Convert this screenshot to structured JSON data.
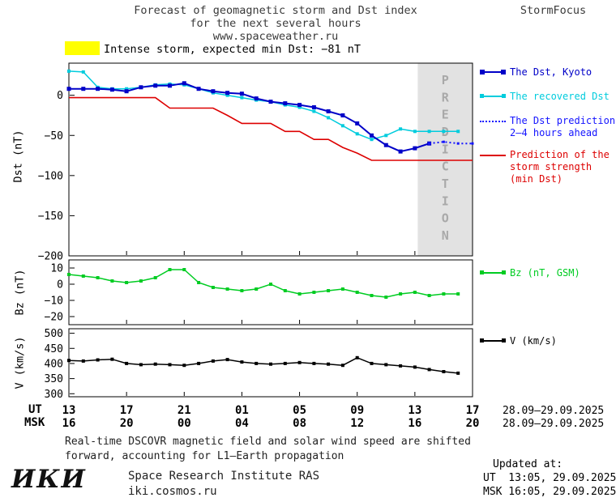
{
  "header": {
    "title_line1": "Forecast of geomagnetic storm and Dst index",
    "title_line2": "for the next several hours",
    "title_line3": "www.spaceweather.ru",
    "brand": "StormFocus"
  },
  "alert": {
    "text": "Intense storm, expected min Dst: −81 nT"
  },
  "axes": {
    "dst_label": "Dst (nT)",
    "bz_label": "Bz (nT)",
    "v_label": "V (km/s)"
  },
  "legend": {
    "dst_kyoto": "The Dst, Kyoto",
    "recovered": "The recovered Dst",
    "prediction_line1": "The Dst prediction",
    "prediction_line2": "2–4 hours ahead",
    "storm_line1": "Prediction of the",
    "storm_line2": "storm strength",
    "storm_line3": "(min Dst)",
    "bz": "Bz (nT, GSM)",
    "v": "V (km/s)"
  },
  "xaxis": {
    "ut_label": "UT",
    "msk_label": "MSK",
    "tick_positions": [
      0,
      4,
      8,
      12,
      16,
      20,
      24,
      28
    ],
    "ut_ticks": [
      "13",
      "17",
      "21",
      "01",
      "05",
      "09",
      "13",
      "17"
    ],
    "msk_ticks": [
      "16",
      "20",
      "00",
      "04",
      "08",
      "12",
      "16",
      "20"
    ],
    "ut_range": "28.09–29.09.2025",
    "msk_range": "28.09–29.09.2025"
  },
  "footer": {
    "note_line1": "Real-time DSCOVR magnetic field and solar wind speed are shifted",
    "note_line2": "forward, accounting for L1–Earth propagation",
    "updated_label": "Updated at:",
    "updated_ut": "UT  13:05, 29.09.2025",
    "updated_msk": "MSK 16:05, 29.09.2025",
    "logo": "ИКИ",
    "institute": "Space Research Institute RAS",
    "site": "iki.cosmos.ru"
  },
  "colors": {
    "yellow": "#ffff00",
    "dst_blue": "#0000c8",
    "recovered_cyan": "#00ccdd",
    "prediction_blue": "#1414ff",
    "storm_red": "#dd0000",
    "bz_green": "#00cc22",
    "band_gray": "#e2e2e2",
    "band_text": "#a9a9a9"
  },
  "chart_data": [
    {
      "type": "line",
      "name": "dst-chart",
      "title": "Dst index: observed, recovered and predicted",
      "ylabel": "Dst (nT)",
      "xlabel": "UT hours 28.09–29.09.2025",
      "xlim": [
        0,
        28
      ],
      "ylim": [
        -200,
        40
      ],
      "yticks": [
        0,
        -50,
        -100,
        -150,
        -200
      ],
      "x_tick_positions": [
        0,
        4,
        8,
        12,
        16,
        20,
        24,
        28
      ],
      "grid": false,
      "legend_position": "right",
      "prediction_band": {
        "x_start": 24.2,
        "x_end": 28,
        "label": "PREDICTION"
      },
      "series": [
        {
          "name": "Prediction of the storm strength (min Dst)",
          "color": "#dd0000",
          "style": "solid",
          "width": 1.6,
          "marker_size": 0,
          "x": [
            0,
            1,
            2,
            3,
            4,
            5,
            6,
            7,
            8,
            9,
            10,
            11,
            12,
            13,
            14,
            15,
            16,
            17,
            18,
            19,
            20,
            21,
            22,
            23,
            24,
            25,
            26,
            27,
            28
          ],
          "values": [
            -3,
            -3,
            -3,
            -3,
            -3,
            -3,
            -3,
            -16,
            -16,
            -16,
            -16,
            -25,
            -35,
            -35,
            -35,
            -45,
            -45,
            -55,
            -55,
            -65,
            -72,
            -81,
            -81,
            -81,
            -81,
            -81,
            -81,
            -81,
            -81
          ]
        },
        {
          "name": "The recovered Dst",
          "color": "#00ccdd",
          "style": "solid",
          "width": 1.5,
          "marker_size": 2,
          "x": [
            0,
            1,
            2,
            3,
            4,
            5,
            6,
            7,
            8,
            9,
            10,
            11,
            12,
            13,
            14,
            15,
            16,
            17,
            18,
            19,
            20,
            21,
            22,
            23,
            24,
            25,
            26,
            27
          ],
          "values": [
            30,
            29,
            10,
            8,
            8,
            10,
            13,
            14,
            13,
            8,
            3,
            0,
            -3,
            -6,
            -8,
            -12,
            -15,
            -20,
            -28,
            -38,
            -48,
            -55,
            -50,
            -42,
            -45,
            -45,
            -45,
            -45
          ]
        },
        {
          "name": "The Dst, Kyoto",
          "color": "#0000c8",
          "style": "solid",
          "width": 2,
          "marker_size": 2.5,
          "x": [
            0,
            1,
            2,
            3,
            4,
            5,
            6,
            7,
            8,
            9,
            10,
            11,
            12,
            13,
            14,
            15,
            16,
            17,
            18,
            19,
            20,
            21,
            22,
            23,
            24,
            25
          ],
          "values": [
            8,
            8,
            8,
            7,
            5,
            10,
            12,
            12,
            15,
            8,
            5,
            3,
            2,
            -4,
            -8,
            -10,
            -12,
            -15,
            -20,
            -25,
            -35,
            -50,
            -62,
            -70,
            -66,
            -60
          ]
        },
        {
          "name": "The Dst prediction 2–4 hours ahead",
          "color": "#1414ff",
          "style": "dotted",
          "width": 2,
          "marker_size": 1.5,
          "x": [
            25,
            26,
            27,
            28
          ],
          "values": [
            -60,
            -58,
            -60,
            -60
          ]
        }
      ]
    },
    {
      "type": "line",
      "name": "bz-chart",
      "title": "Bz component of interplanetary magnetic field",
      "ylabel": "Bz (nT)",
      "xlim": [
        0,
        28
      ],
      "ylim": [
        -25,
        15
      ],
      "yticks": [
        10,
        0,
        -10,
        -20
      ],
      "x_tick_positions": [
        0,
        4,
        8,
        12,
        16,
        20,
        24,
        28
      ],
      "grid": false,
      "series": [
        {
          "name": "Bz (nT, GSM)",
          "color": "#00cc22",
          "style": "solid",
          "width": 1.5,
          "marker_size": 2,
          "x": [
            0,
            1,
            2,
            3,
            4,
            5,
            6,
            7,
            8,
            9,
            10,
            11,
            12,
            13,
            14,
            15,
            16,
            17,
            18,
            19,
            20,
            21,
            22,
            23,
            24,
            25,
            26,
            27
          ],
          "values": [
            6,
            5,
            4,
            2,
            1,
            2,
            4,
            9,
            9,
            1,
            -2,
            -3,
            -4,
            -3,
            0,
            -4,
            -6,
            -5,
            -4,
            -3,
            -5,
            -7,
            -8,
            -6,
            -5,
            -7,
            -6,
            -6
          ]
        }
      ]
    },
    {
      "type": "line",
      "name": "v-chart",
      "title": "Solar wind speed",
      "ylabel": "V (km/s)",
      "xlim": [
        0,
        28
      ],
      "ylim": [
        290,
        515
      ],
      "yticks": [
        500,
        450,
        400,
        350,
        300
      ],
      "x_tick_positions": [
        0,
        4,
        8,
        12,
        16,
        20,
        24,
        28
      ],
      "grid": false,
      "series": [
        {
          "name": "V (km/s)",
          "color": "#000000",
          "style": "solid",
          "width": 1.5,
          "marker_size": 2,
          "x": [
            0,
            1,
            2,
            3,
            4,
            5,
            6,
            7,
            8,
            9,
            10,
            11,
            12,
            13,
            14,
            15,
            16,
            17,
            18,
            19,
            20,
            21,
            22,
            23,
            24,
            25,
            26,
            27
          ],
          "values": [
            410,
            408,
            412,
            414,
            400,
            396,
            398,
            396,
            394,
            400,
            408,
            413,
            405,
            400,
            398,
            400,
            403,
            400,
            398,
            394,
            419,
            400,
            396,
            392,
            388,
            380,
            373,
            368
          ]
        }
      ]
    }
  ]
}
